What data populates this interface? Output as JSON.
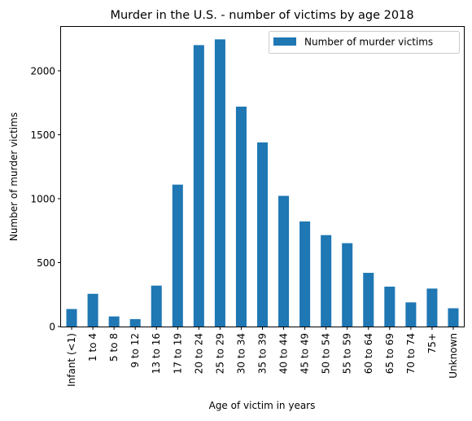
{
  "chart_data": {
    "type": "bar",
    "title": "Murder in the U.S. - number of victims by age 2018",
    "xlabel": "Age of victim in years",
    "ylabel": "Number of murder victims",
    "ylim": [
      0,
      2350
    ],
    "yticks": [
      0,
      500,
      1000,
      1500,
      2000
    ],
    "grid": false,
    "legend_position": "top-right",
    "bar_color": "#1f77b4",
    "categories": [
      "Infant (<1)",
      "1 to 4",
      "5 to 8",
      "9 to 12",
      "13 to 16",
      "17 to 19",
      "20 to 24",
      "25 to 29",
      "30 to 34",
      "35 to 39",
      "40 to 44",
      "45 to 49",
      "50 to 54",
      "55 to 59",
      "60 to 64",
      "65 to 69",
      "70 to 74",
      "75+",
      "Unknown"
    ],
    "series": [
      {
        "name": "Number of murder victims",
        "values": [
          137,
          256,
          79,
          58,
          320,
          1110,
          2201,
          2246,
          1720,
          1440,
          1022,
          822,
          715,
          652,
          420,
          312,
          189,
          297,
          143
        ]
      }
    ]
  }
}
